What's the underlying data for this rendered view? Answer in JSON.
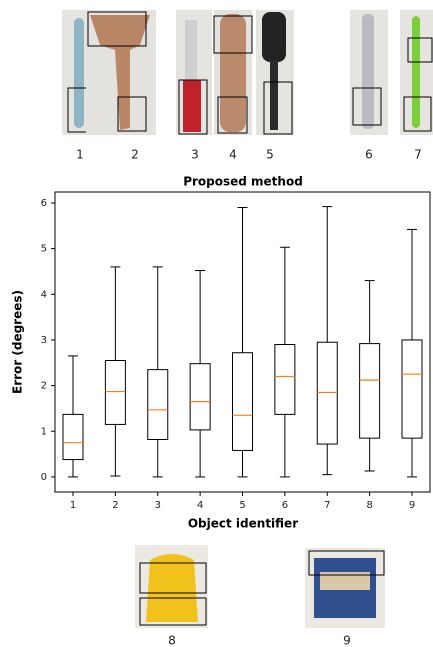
{
  "chart_data": {
    "type": "box",
    "title": "Proposed method",
    "x_label": "Object identifier",
    "y_label": "Error (degrees)",
    "categories": [
      "1",
      "2",
      "3",
      "4",
      "5",
      "6",
      "7",
      "8",
      "9"
    ],
    "boxes": [
      {
        "whislo": 0.0,
        "q1": 0.38,
        "med": 0.75,
        "q3": 1.37,
        "whishi": 2.65
      },
      {
        "whislo": 0.02,
        "q1": 1.15,
        "med": 1.87,
        "q3": 2.55,
        "whishi": 4.6
      },
      {
        "whislo": 0.0,
        "q1": 0.82,
        "med": 1.47,
        "q3": 2.35,
        "whishi": 4.6
      },
      {
        "whislo": 0.0,
        "q1": 1.03,
        "med": 1.65,
        "q3": 2.48,
        "whishi": 4.52
      },
      {
        "whislo": 0.0,
        "q1": 0.58,
        "med": 1.35,
        "q3": 2.72,
        "whishi": 5.9
      },
      {
        "whislo": 0.0,
        "q1": 1.37,
        "med": 2.2,
        "q3": 2.9,
        "whishi": 5.03
      },
      {
        "whislo": 0.05,
        "q1": 0.72,
        "med": 1.85,
        "q3": 2.95,
        "whishi": 5.92
      },
      {
        "whislo": 0.13,
        "q1": 0.85,
        "med": 2.12,
        "q3": 2.92,
        "whishi": 4.3
      },
      {
        "whislo": 0.0,
        "q1": 0.85,
        "med": 2.25,
        "q3": 3.0,
        "whishi": 5.42
      }
    ],
    "color": "#000000",
    "median_color": "#ff7f0e",
    "ylim": [
      -0.33,
      6.24
    ],
    "yticks": [
      0,
      1,
      2,
      3,
      4,
      5,
      6
    ],
    "grid": false
  },
  "top_images": [
    {
      "label": "1"
    },
    {
      "label": "2"
    },
    {
      "label": "3"
    },
    {
      "label": "4"
    },
    {
      "label": "5"
    },
    {
      "label": "6"
    },
    {
      "label": "7"
    }
  ],
  "bottom_images": [
    {
      "label": "8"
    },
    {
      "label": "9"
    }
  ]
}
